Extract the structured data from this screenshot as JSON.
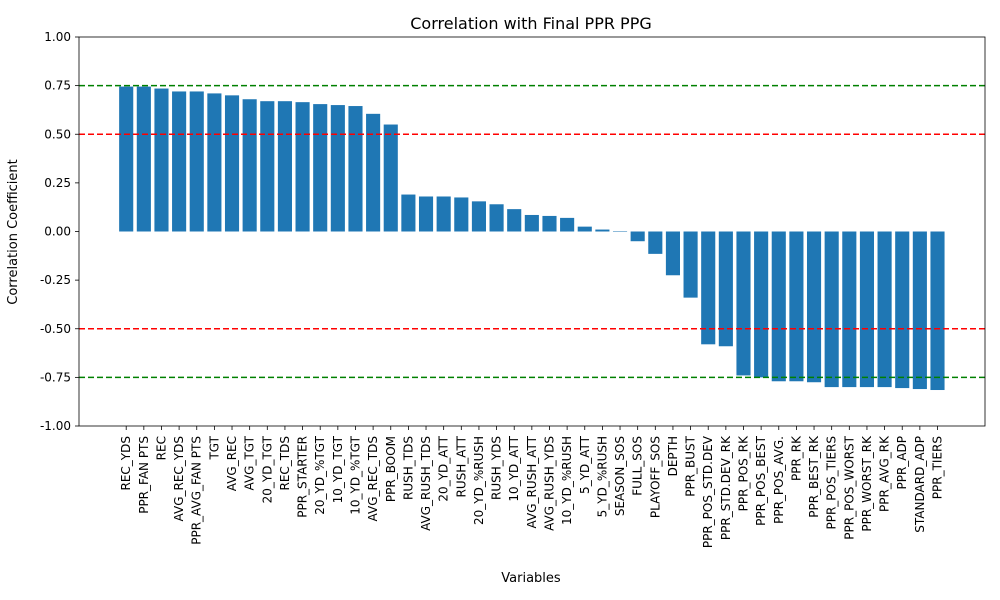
{
  "chart_data": {
    "type": "bar",
    "title": "Correlation with Final PPR PPG",
    "xlabel": "Variables",
    "ylabel": "Correlation Coefficient",
    "ylim": [
      -1.0,
      1.0
    ],
    "yticks": [
      "-1.00",
      "-0.75",
      "-0.50",
      "-0.25",
      "0.00",
      "0.25",
      "0.50",
      "0.75",
      "1.00"
    ],
    "bar_color": "#1f77b4",
    "reference_lines": [
      {
        "y": 0.75,
        "color": "#008000",
        "style": "dashed"
      },
      {
        "y": 0.5,
        "color": "#ff0000",
        "style": "dashed"
      },
      {
        "y": -0.5,
        "color": "#ff0000",
        "style": "dashed"
      },
      {
        "y": -0.75,
        "color": "#008000",
        "style": "dashed"
      }
    ],
    "categories": [
      "REC_YDS",
      "PPR_FAN PTS",
      "REC",
      "AVG_REC_YDS",
      "PPR_AVG_FAN PTS",
      "TGT",
      "AVG_REC",
      "AVG_TGT",
      "20_YD_TGT",
      "REC_TDS",
      "PPR_STARTER",
      "20_YD_%TGT",
      "10_YD_TGT",
      "10_YD_%TGT",
      "AVG_REC_TDS",
      "PPR_BOOM",
      "RUSH_TDS",
      "AVG_RUSH_TDS",
      "20_YD_ATT",
      "RUSH_ATT",
      "20_YD_%RUSH",
      "RUSH_YDS",
      "10_YD_ATT",
      "AVG_RUSH_ATT",
      "AVG_RUSH_YDS",
      "10_YD_%RUSH",
      "5_YD_ATT",
      "5_YD_%RUSH",
      "SEASON_SOS",
      "FULL_SOS",
      "PLAYOFF_SOS",
      "DEPTH",
      "PPR_BUST",
      "PPR_POS_STD.DEV",
      "PPR_STD.DEV_RK",
      "PPR_POS_RK",
      "PPR_POS_BEST",
      "PPR_POS_AVG.",
      "PPR_RK",
      "PPR_BEST_RK",
      "PPR_POS_TIERS",
      "PPR_POS_WORST",
      "PPR_WORST_RK",
      "PPR_AVG_RK",
      "PPR_ADP",
      "STANDARD_ADP",
      "PPR_TIERS"
    ],
    "values": [
      0.745,
      0.745,
      0.735,
      0.72,
      0.72,
      0.71,
      0.7,
      0.68,
      0.67,
      0.67,
      0.665,
      0.655,
      0.65,
      0.645,
      0.605,
      0.55,
      0.19,
      0.18,
      0.18,
      0.175,
      0.155,
      0.14,
      0.115,
      0.085,
      0.08,
      0.07,
      0.025,
      0.01,
      0.0,
      -0.05,
      -0.115,
      -0.225,
      -0.34,
      -0.58,
      -0.59,
      -0.74,
      -0.75,
      -0.77,
      -0.77,
      -0.775,
      -0.8,
      -0.8,
      -0.8,
      -0.8,
      -0.805,
      -0.81,
      -0.815
    ]
  }
}
